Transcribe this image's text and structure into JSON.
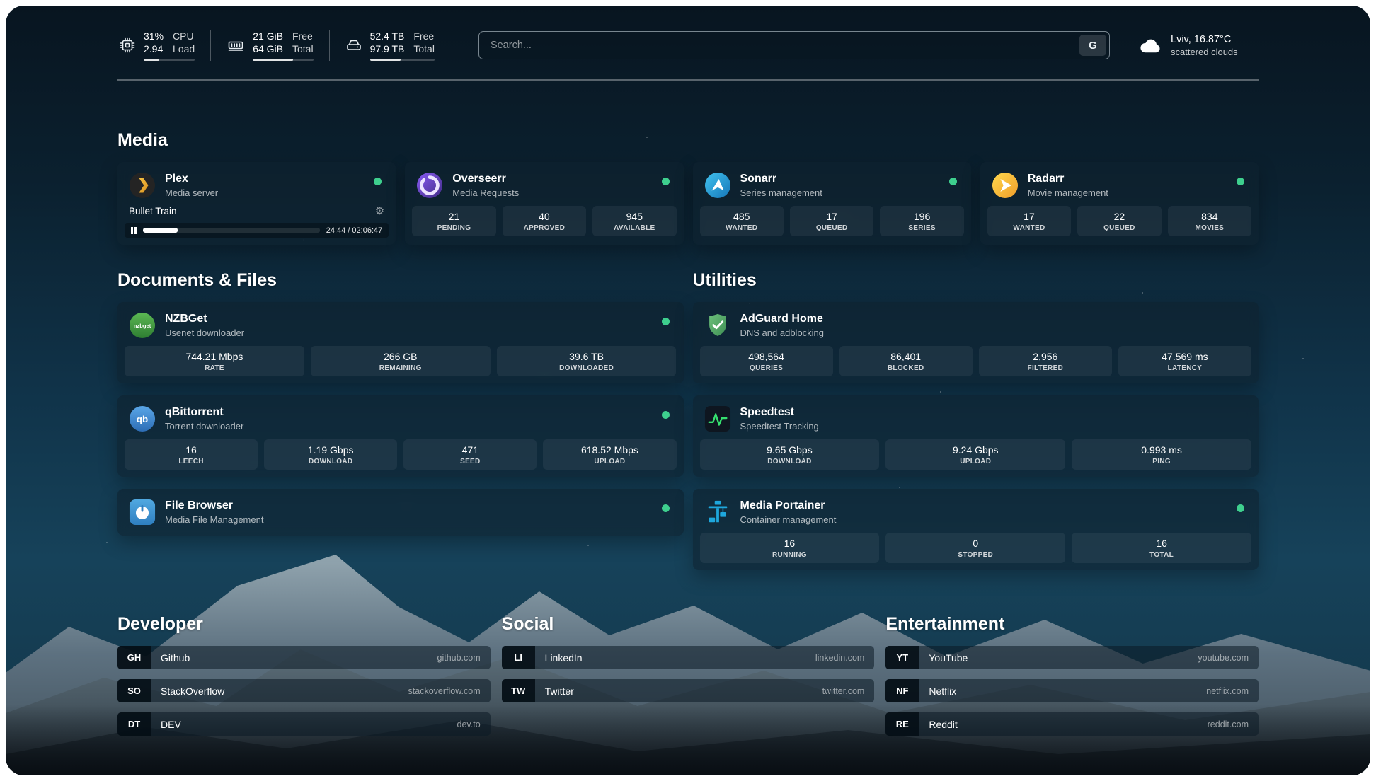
{
  "colors": {
    "status_online": "#3ecf8e",
    "background_top": "#081520",
    "background_mid": "#103349",
    "card_bg": "rgba(15,34,47,0.62)"
  },
  "icons": {
    "gear": "⚙",
    "pause": "pause-bars",
    "search_provider": "G"
  },
  "topbar": {
    "cpu": {
      "value_top": "31%",
      "value_bottom": "2.94",
      "label_top": "CPU",
      "label_bottom": "Load",
      "bar_percent": 31
    },
    "memory": {
      "value_top": "21 GiB",
      "value_bottom": "64 GiB",
      "label_top": "Free",
      "label_bottom": "Total",
      "bar_percent": 67
    },
    "disk": {
      "value_top": "52.4 TB",
      "value_bottom": "97.9 TB",
      "label_top": "Free",
      "label_bottom": "Total",
      "bar_percent": 47
    },
    "search": {
      "placeholder": "Search...",
      "provider_label": "G"
    },
    "weather": {
      "location": "Lviv, 16.87°C",
      "condition": "scattered clouds"
    }
  },
  "sections": {
    "media": {
      "title": "Media",
      "plex": {
        "name": "Plex",
        "subtitle": "Media server",
        "now_playing": "Bullet Train",
        "time": "24:44 / 02:06:47",
        "progress_percent": 19.5
      },
      "overseerr": {
        "name": "Overseerr",
        "subtitle": "Media Requests",
        "stats": [
          {
            "value": "21",
            "label": "PENDING"
          },
          {
            "value": "40",
            "label": "APPROVED"
          },
          {
            "value": "945",
            "label": "AVAILABLE"
          }
        ]
      },
      "sonarr": {
        "name": "Sonarr",
        "subtitle": "Series management",
        "stats": [
          {
            "value": "485",
            "label": "WANTED"
          },
          {
            "value": "17",
            "label": "QUEUED"
          },
          {
            "value": "196",
            "label": "SERIES"
          }
        ]
      },
      "radarr": {
        "name": "Radarr",
        "subtitle": "Movie management",
        "stats": [
          {
            "value": "17",
            "label": "WANTED"
          },
          {
            "value": "22",
            "label": "QUEUED"
          },
          {
            "value": "834",
            "label": "MOVIES"
          }
        ]
      }
    },
    "documents": {
      "title": "Documents & Files",
      "nzbget": {
        "name": "NZBGet",
        "subtitle": "Usenet downloader",
        "stats": [
          {
            "value": "744.21 Mbps",
            "label": "RATE"
          },
          {
            "value": "266 GB",
            "label": "REMAINING"
          },
          {
            "value": "39.6 TB",
            "label": "DOWNLOADED"
          }
        ]
      },
      "qbittorrent": {
        "name": "qBittorrent",
        "subtitle": "Torrent downloader",
        "stats": [
          {
            "value": "16",
            "label": "LEECH"
          },
          {
            "value": "1.19 Gbps",
            "label": "DOWNLOAD"
          },
          {
            "value": "471",
            "label": "SEED"
          },
          {
            "value": "618.52 Mbps",
            "label": "UPLOAD"
          }
        ]
      },
      "filebrowser": {
        "name": "File Browser",
        "subtitle": "Media File Management"
      }
    },
    "utilities": {
      "title": "Utilities",
      "adguard": {
        "name": "AdGuard Home",
        "subtitle": "DNS and adblocking",
        "stats": [
          {
            "value": "498,564",
            "label": "QUERIES"
          },
          {
            "value": "86,401",
            "label": "BLOCKED"
          },
          {
            "value": "2,956",
            "label": "FILTERED"
          },
          {
            "value": "47.569 ms",
            "label": "LATENCY"
          }
        ]
      },
      "speedtest": {
        "name": "Speedtest",
        "subtitle": "Speedtest Tracking",
        "stats": [
          {
            "value": "9.65 Gbps",
            "label": "DOWNLOAD"
          },
          {
            "value": "9.24 Gbps",
            "label": "UPLOAD"
          },
          {
            "value": "0.993 ms",
            "label": "PING"
          }
        ]
      },
      "portainer": {
        "name": "Media Portainer",
        "subtitle": "Container management",
        "stats": [
          {
            "value": "16",
            "label": "RUNNING"
          },
          {
            "value": "0",
            "label": "STOPPED"
          },
          {
            "value": "16",
            "label": "TOTAL"
          }
        ]
      }
    }
  },
  "bookmarks": {
    "developer": {
      "title": "Developer",
      "items": [
        {
          "abbr": "GH",
          "name": "Github",
          "url": "github.com"
        },
        {
          "abbr": "SO",
          "name": "StackOverflow",
          "url": "stackoverflow.com"
        },
        {
          "abbr": "DT",
          "name": "DEV",
          "url": "dev.to"
        }
      ]
    },
    "social": {
      "title": "Social",
      "items": [
        {
          "abbr": "LI",
          "name": "LinkedIn",
          "url": "linkedin.com"
        },
        {
          "abbr": "TW",
          "name": "Twitter",
          "url": "twitter.com"
        }
      ]
    },
    "entertainment": {
      "title": "Entertainment",
      "items": [
        {
          "abbr": "YT",
          "name": "YouTube",
          "url": "youtube.com"
        },
        {
          "abbr": "NF",
          "name": "Netflix",
          "url": "netflix.com"
        },
        {
          "abbr": "RE",
          "name": "Reddit",
          "url": "reddit.com"
        }
      ]
    }
  }
}
